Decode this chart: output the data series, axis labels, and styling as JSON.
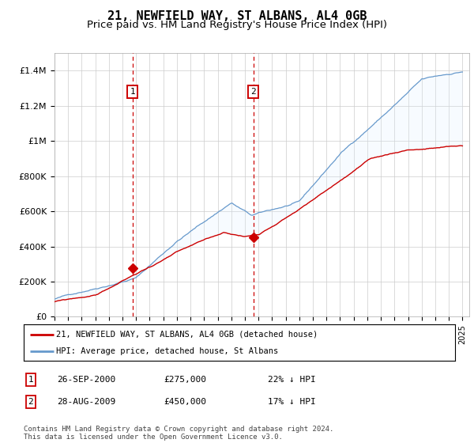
{
  "title": "21, NEWFIELD WAY, ST ALBANS, AL4 0GB",
  "subtitle": "Price paid vs. HM Land Registry's House Price Index (HPI)",
  "ylabel_ticks": [
    "£0",
    "£200K",
    "£400K",
    "£600K",
    "£800K",
    "£1M",
    "£1.2M",
    "£1.4M"
  ],
  "ylim": [
    0,
    1500000
  ],
  "ytick_values": [
    0,
    200000,
    400000,
    600000,
    800000,
    1000000,
    1200000,
    1400000
  ],
  "x_start_year": 1995,
  "x_end_year": 2025,
  "sale1_x": 2000.73,
  "sale1_price": 275000,
  "sale1_label": "26-SEP-2000",
  "sale1_hpi_diff": "22% ↓ HPI",
  "sale2_x": 2009.62,
  "sale2_price": 450000,
  "sale2_label": "28-AUG-2009",
  "sale2_hpi_diff": "17% ↓ HPI",
  "red_line_color": "#cc0000",
  "blue_line_color": "#6699cc",
  "shaded_color": "#ddeeff",
  "legend_label_red": "21, NEWFIELD WAY, ST ALBANS, AL4 0GB (detached house)",
  "legend_label_blue": "HPI: Average price, detached house, St Albans",
  "footer": "Contains HM Land Registry data © Crown copyright and database right 2024.\nThis data is licensed under the Open Government Licence v3.0.",
  "background_color": "#ffffff",
  "grid_color": "#cccccc",
  "title_fontsize": 11,
  "subtitle_fontsize": 9.5
}
